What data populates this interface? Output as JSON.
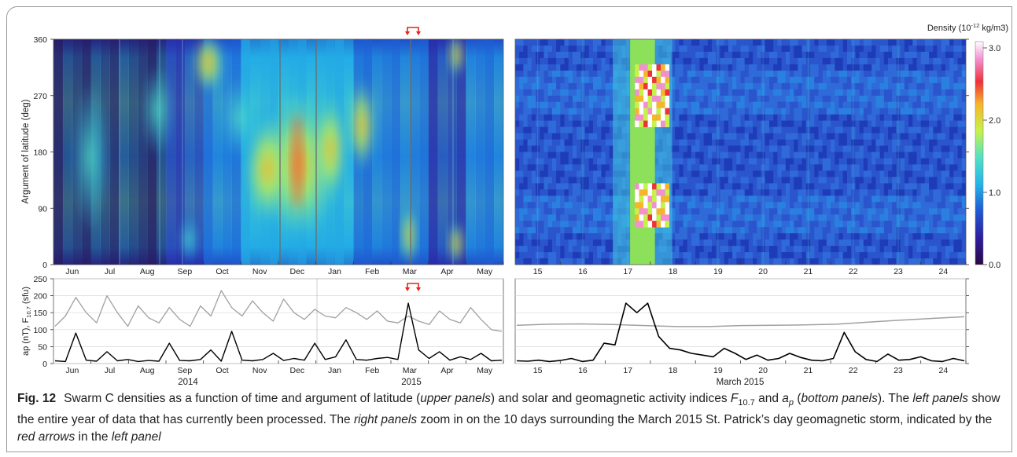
{
  "figure": {
    "label": "Fig. 12",
    "caption_parts": [
      {
        "t": "Swarm C densities as a function of time and argument of latitude (",
        "i": false
      },
      {
        "t": "upper panels",
        "i": true
      },
      {
        "t": ") and solar and geomagnetic activity indices ",
        "i": false
      },
      {
        "t": "F",
        "i": true
      },
      {
        "t": "10.7",
        "sub": true
      },
      {
        "t": " and ",
        "i": false
      },
      {
        "t": "a",
        "i": true
      },
      {
        "t": "p",
        "sub": true,
        "i": true
      },
      {
        "t": " (",
        "i": false
      },
      {
        "t": "bottom panels",
        "i": true
      },
      {
        "t": "). The ",
        "i": false
      },
      {
        "t": "left panels",
        "i": true
      },
      {
        "t": " show the entire year of data that has currently been processed. The ",
        "i": false
      },
      {
        "t": "right panels",
        "i": true
      },
      {
        "t": " zoom in on the 10 days surrounding the March 2015 St. Patrick’s day geomagnetic storm, indicated by the ",
        "i": false
      },
      {
        "t": "red arrows",
        "i": true
      },
      {
        "t": " in the ",
        "i": false
      },
      {
        "t": "left panel",
        "i": true
      }
    ]
  },
  "colors": {
    "f107_line": "#a0a0a0",
    "ap_line": "#000000",
    "arrow": "#e8231a",
    "colormap": [
      "#2a0845",
      "#2e1ea0",
      "#1f5ed6",
      "#24b4e8",
      "#52e0c4",
      "#c6f24a",
      "#f7b52a",
      "#f0303a",
      "#f48fd0",
      "#ffffff"
    ]
  },
  "chart_data": [
    {
      "type": "heatmap",
      "panel": "upper-left",
      "ylabel": "Argument of latitude (deg)",
      "ylim": [
        0,
        360
      ],
      "yticks": [
        "0",
        "90",
        "180",
        "270",
        "360"
      ],
      "xticks": [
        "Jun",
        "Jul",
        "Aug",
        "Sep",
        "Oct",
        "Nov",
        "Dec",
        "Jan",
        "Feb",
        "Mar",
        "Apr",
        "May"
      ],
      "colorbar": {
        "label": "Density (10",
        "label_exp": "-12",
        "label_unit": " kg/m3)",
        "range": [
          0,
          3
        ],
        "ticks": [
          "0.0",
          "1.0",
          "2.0",
          "3.0"
        ]
      }
    },
    {
      "type": "heatmap",
      "panel": "upper-right",
      "ylim": [
        0,
        360
      ],
      "xticks": [
        "15",
        "16",
        "17",
        "18",
        "19",
        "20",
        "21",
        "22",
        "23",
        "24"
      ]
    },
    {
      "type": "line",
      "panel": "lower-left",
      "ylabel": "ap (nT), F",
      "ylabel_sub": "10.7",
      "ylabel_unit": " (sfu)",
      "ylim": [
        0,
        250
      ],
      "yticks": [
        "0",
        "50",
        "100",
        "150",
        "200",
        "250"
      ],
      "xticks": [
        "Jun",
        "Jul",
        "Aug",
        "Sep",
        "Oct",
        "Nov",
        "Dec",
        "Jan",
        "Feb",
        "Mar",
        "Apr",
        "May"
      ],
      "year_labels": [
        "2014",
        "2015"
      ],
      "series": [
        {
          "key": "F10.7",
          "values": [
            110,
            140,
            195,
            150,
            120,
            200,
            150,
            110,
            170,
            135,
            120,
            165,
            130,
            110,
            170,
            140,
            215,
            165,
            140,
            185,
            150,
            125,
            190,
            150,
            130,
            160,
            140,
            135,
            165,
            150,
            130,
            155,
            125,
            120,
            140,
            125,
            115,
            155,
            130,
            120,
            165,
            130,
            100,
            95
          ]
        },
        {
          "key": "ap",
          "values": [
            8,
            6,
            90,
            10,
            7,
            35,
            8,
            12,
            6,
            9,
            7,
            60,
            9,
            8,
            12,
            40,
            7,
            95,
            10,
            8,
            12,
            30,
            9,
            15,
            10,
            60,
            12,
            20,
            70,
            12,
            10,
            15,
            18,
            12,
            178,
            40,
            15,
            35,
            10,
            20,
            12,
            30,
            8,
            10
          ]
        }
      ]
    },
    {
      "type": "line",
      "panel": "lower-right",
      "xlabel": "March 2015",
      "xticks": [
        "15",
        "16",
        "17",
        "18",
        "19",
        "20",
        "21",
        "22",
        "23",
        "24"
      ],
      "series": [
        {
          "key": "F10.7",
          "values": [
            113,
            116,
            117,
            115,
            112,
            109,
            109,
            112,
            113,
            114,
            116,
            122,
            128,
            133,
            138
          ]
        },
        {
          "key": "ap",
          "values": [
            8,
            7,
            10,
            6,
            9,
            15,
            6,
            10,
            60,
            55,
            178,
            150,
            178,
            80,
            45,
            40,
            30,
            25,
            20,
            45,
            30,
            12,
            25,
            10,
            15,
            30,
            18,
            10,
            8,
            15,
            92,
            35,
            12,
            6,
            28,
            10,
            12,
            20,
            8,
            6,
            15,
            8
          ]
        }
      ]
    }
  ]
}
